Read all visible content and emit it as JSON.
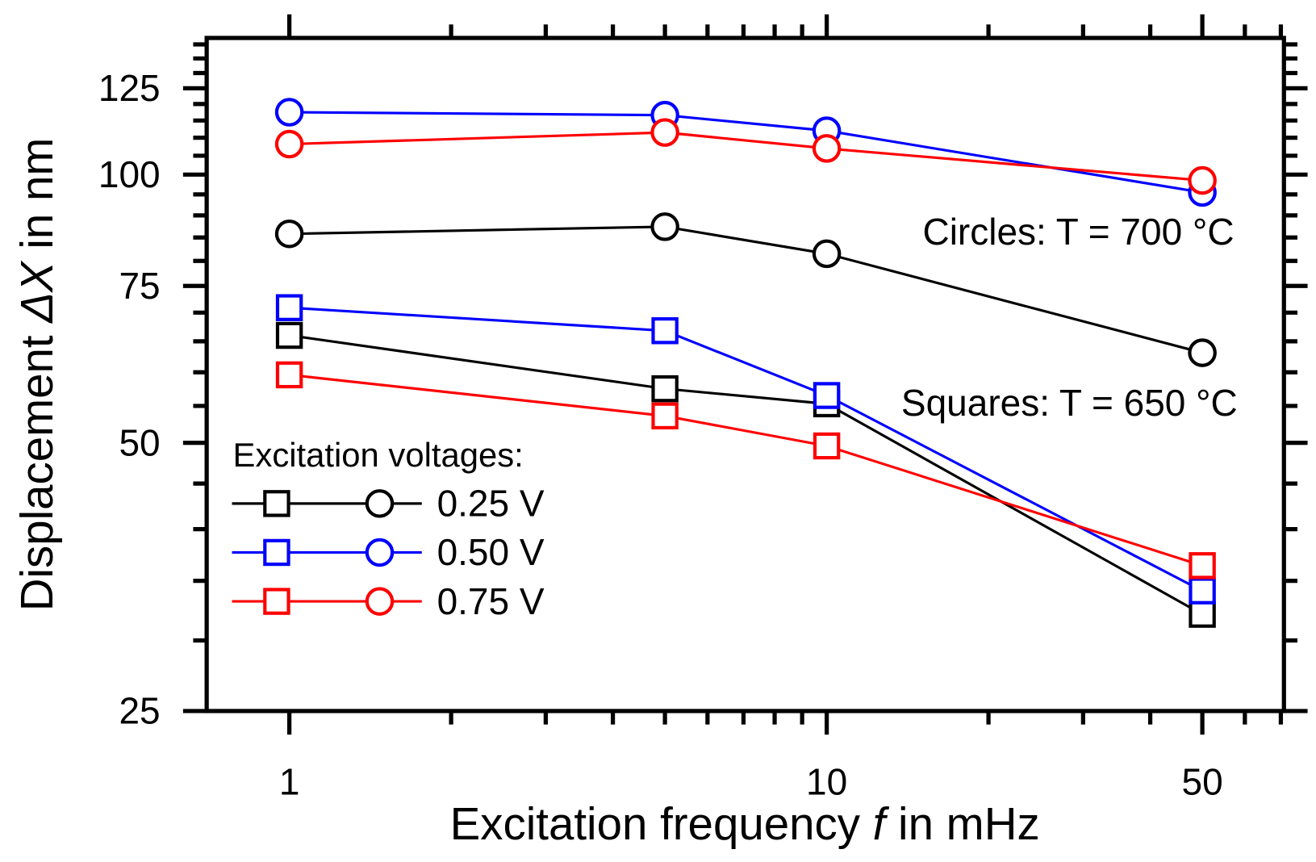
{
  "chart_data": {
    "type": "line",
    "xlabel_parts": [
      "Excitation frequency ",
      "f",
      " in mHz"
    ],
    "ylabel_parts": [
      "Displacement ",
      "ΔX",
      " in nm"
    ],
    "xscale": "log",
    "yscale": "log",
    "xlim": [
      0.7,
      71
    ],
    "ylim": [
      25,
      142
    ],
    "xticks": [
      1,
      10,
      50
    ],
    "xtick_labels": [
      "1",
      "10",
      "50"
    ],
    "yticks": [
      25,
      50,
      75,
      100,
      125
    ],
    "ytick_labels": [
      "25",
      "50",
      "75",
      "100",
      "125"
    ],
    "x": [
      1,
      5,
      10,
      50
    ],
    "series": [
      {
        "name": "0.25 V circles (T = 700 °C)",
        "color": "#000000",
        "marker": "circle",
        "values": [
          85.8,
          87.4,
          81.5,
          63.1
        ]
      },
      {
        "name": "0.50 V circles (T = 700 °C)",
        "color": "#0000ff",
        "marker": "circle",
        "values": [
          117.5,
          116.6,
          112,
          95.5
        ]
      },
      {
        "name": "0.75 V circles (T = 700 °C)",
        "color": "#ff0000",
        "marker": "circle",
        "values": [
          108.2,
          111.5,
          107,
          98.5
        ]
      },
      {
        "name": "0.25 V squares (T = 650 °C)",
        "color": "#000000",
        "marker": "square",
        "values": [
          66,
          57.5,
          55.3,
          32.1
        ]
      },
      {
        "name": "0.50 V squares (T = 650 °C)",
        "color": "#0000ff",
        "marker": "square",
        "values": [
          70.9,
          66.8,
          56.5,
          34.1
        ]
      },
      {
        "name": "0.75 V squares (T = 650 °C)",
        "color": "#ff0000",
        "marker": "square",
        "values": [
          59.6,
          53.6,
          49.6,
          36.4
        ]
      }
    ],
    "annotations": [
      "Circles: T = 700 °C",
      "Squares: T = 650 °C"
    ],
    "legend": {
      "title": "Excitation voltages:",
      "placement": "bottom-left",
      "entries": [
        {
          "label": "0.25 V",
          "color": "#000000"
        },
        {
          "label": "0.50 V",
          "color": "#0000ff"
        },
        {
          "label": "0.75 V",
          "color": "#ff0000"
        }
      ]
    }
  }
}
